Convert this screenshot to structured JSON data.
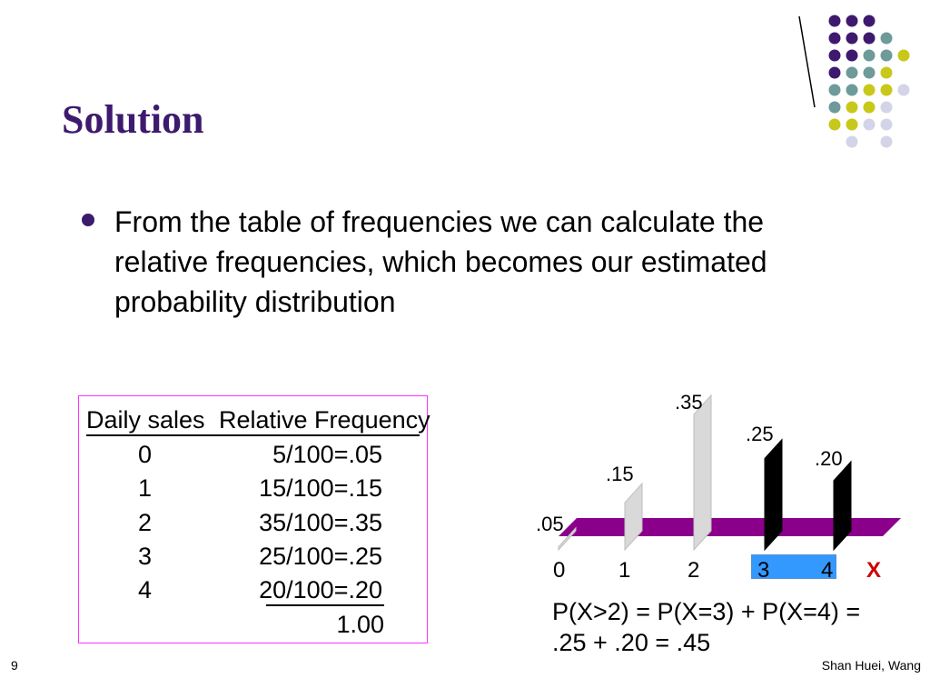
{
  "slide": {
    "title": "Solution",
    "bullet": "From the table of frequencies we can calculate the relative frequencies, which becomes our estimated probability distribution",
    "page_number": "9",
    "author": "Shan Huei, Wang"
  },
  "table": {
    "header_sales": "Daily sales",
    "header_freq": "Relative Frequency",
    "rows": [
      {
        "sales": "0",
        "freq": "5/100=.05"
      },
      {
        "sales": "1",
        "freq": "15/100=.15"
      },
      {
        "sales": "2",
        "freq": "35/100=.35"
      },
      {
        "sales": "3",
        "freq": "25/100=.25"
      },
      {
        "sales": "4",
        "freq": "20/100=.20"
      }
    ],
    "total": "1.00"
  },
  "chart_data": {
    "type": "bar",
    "categories": [
      "0",
      "1",
      "2",
      "3",
      "4"
    ],
    "values": [
      0.05,
      0.15,
      0.35,
      0.25,
      0.2
    ],
    "value_labels": [
      ".05",
      ".15",
      ".35",
      ".25",
      ".20"
    ],
    "xlabel": "X",
    "highlighted_categories": [
      "3",
      "4"
    ],
    "colors": {
      "platform": "#8b008b",
      "bar_light": "#d9d9d9",
      "bar_highlight": "#000000",
      "highlight_box": "#3399ff",
      "axis_label": "#cc0000"
    }
  },
  "equation": {
    "line1": "P(X>2) = P(X=3) +  P(X=4) =",
    "line2": ".25 + .20 = .45"
  },
  "decoration": {
    "dot_colors": {
      "purple": "#3d1a6e",
      "teal": "#6e9a9a",
      "yellow": "#c8c81a",
      "lavender": "#d4d4e8"
    }
  }
}
